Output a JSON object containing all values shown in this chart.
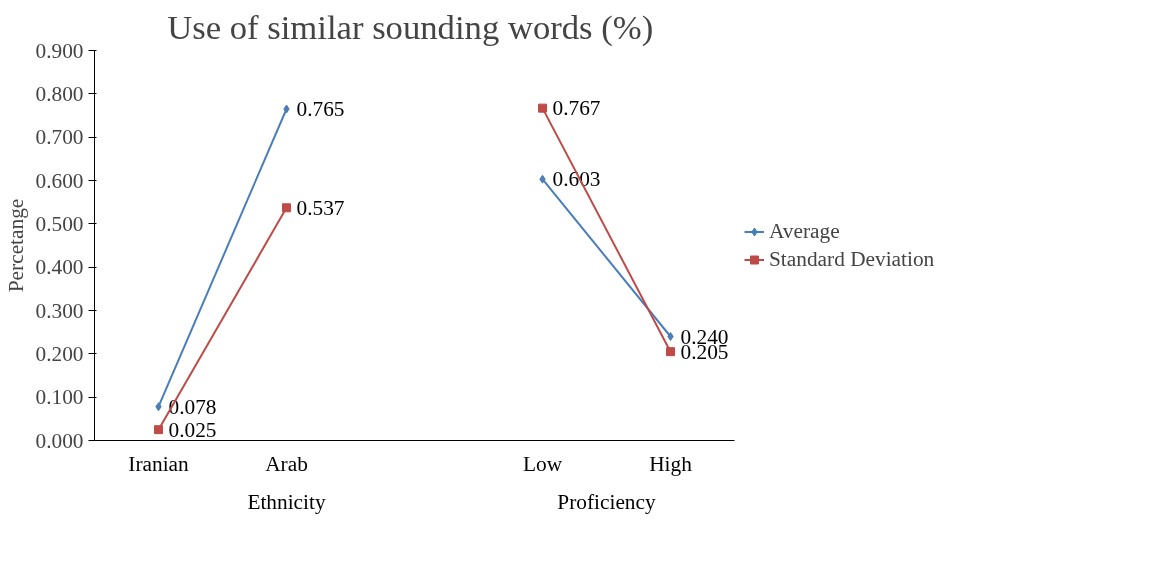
{
  "chart_data": {
    "type": "line",
    "title": "Use of similar sounding words  (%)",
    "ylabel": "Percetange",
    "categories": [
      "Iranian",
      "Arab",
      null,
      "Low",
      "High"
    ],
    "series": [
      {
        "name": "Average",
        "color": "#4a7ebb",
        "marker": "diamond",
        "values": [
          0.078,
          0.765,
          null,
          0.603,
          0.24
        ],
        "value_labels": [
          "0.078",
          "0.765",
          null,
          "0.603",
          "0.240"
        ]
      },
      {
        "name": "Standard Deviation",
        "color": "#be4b48",
        "marker": "square",
        "values": [
          0.025,
          0.537,
          null,
          0.767,
          0.205
        ],
        "value_labels": [
          "0.025",
          "0.537",
          null,
          "0.767",
          "0.205"
        ]
      }
    ],
    "ylim": [
      0,
      0.9
    ],
    "yticks": [
      {
        "value": 0,
        "label": "0.000"
      },
      {
        "value": 0.1,
        "label": "0.100"
      },
      {
        "value": 0.2,
        "label": "0.200"
      },
      {
        "value": 0.3,
        "label": "0.300"
      },
      {
        "value": 0.4,
        "label": "0.400"
      },
      {
        "value": 0.5,
        "label": "0.500"
      },
      {
        "value": 0.6,
        "label": "0.600"
      },
      {
        "value": 0.7,
        "label": "0.700"
      },
      {
        "value": 0.8,
        "label": "0.800"
      },
      {
        "value": 0.9,
        "label": "0.900"
      }
    ],
    "annotations": [
      "Ethnicity",
      "Proficiency"
    ],
    "grid": false,
    "legend": "right",
    "line_style": "solid"
  }
}
